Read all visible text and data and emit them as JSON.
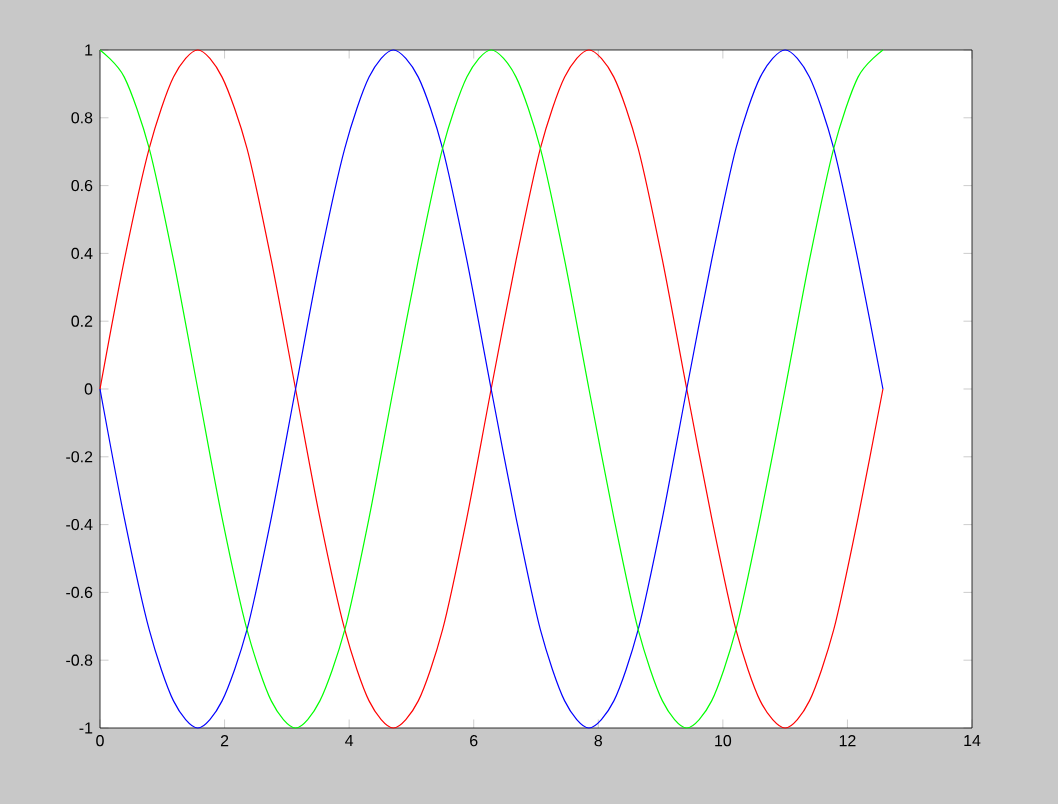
{
  "chart_data": {
    "type": "line",
    "x": [
      0,
      0.39,
      0.79,
      1.18,
      1.57,
      1.96,
      2.36,
      2.75,
      3.14,
      3.53,
      3.93,
      4.32,
      4.71,
      5.11,
      5.5,
      5.89,
      6.28,
      6.68,
      7.07,
      7.46,
      7.85,
      8.25,
      8.64,
      9.03,
      9.42,
      9.82,
      10.21,
      10.6,
      11,
      11.39,
      11.78,
      12.17,
      12.57
    ],
    "series": [
      {
        "color": "#ff0000",
        "values": [
          0,
          0.38,
          0.71,
          0.92,
          1,
          0.92,
          0.71,
          0.38,
          0,
          -0.38,
          -0.71,
          -0.92,
          -1,
          -0.92,
          -0.71,
          -0.38,
          0,
          0.38,
          0.71,
          0.92,
          1,
          0.92,
          0.71,
          0.38,
          0,
          -0.38,
          -0.71,
          -0.92,
          -1,
          -0.92,
          -0.71,
          -0.38,
          0
        ]
      },
      {
        "color": "#0000ff",
        "values": [
          0,
          -0.38,
          -0.71,
          -0.92,
          -1,
          -0.92,
          -0.71,
          -0.38,
          0,
          0.38,
          0.71,
          0.92,
          1,
          0.92,
          0.71,
          0.38,
          0,
          -0.38,
          -0.71,
          -0.92,
          -1,
          -0.92,
          -0.71,
          -0.38,
          0,
          0.38,
          0.71,
          0.92,
          1,
          0.92,
          0.71,
          0.38,
          0
        ]
      },
      {
        "color": "#00ff00",
        "values": [
          1,
          0.92,
          0.71,
          0.38,
          0,
          -0.38,
          -0.71,
          -0.92,
          -1,
          -0.92,
          -0.71,
          -0.38,
          0,
          0.38,
          0.71,
          0.92,
          1,
          0.92,
          0.71,
          0.38,
          0,
          -0.38,
          -0.71,
          -0.92,
          -1,
          -0.92,
          -0.71,
          -0.38,
          0,
          0.38,
          0.71,
          0.92,
          1
        ]
      }
    ],
    "xlim": [
      0,
      14
    ],
    "ylim": [
      -1,
      1
    ],
    "xticks": [
      0,
      2,
      4,
      6,
      8,
      10,
      12,
      14
    ],
    "yticks": [
      -1,
      -0.8,
      -0.6,
      -0.4,
      -0.2,
      0,
      0.2,
      0.4,
      0.6,
      0.8,
      1
    ],
    "grid": false,
    "marker": "none",
    "line_style": "solid"
  }
}
